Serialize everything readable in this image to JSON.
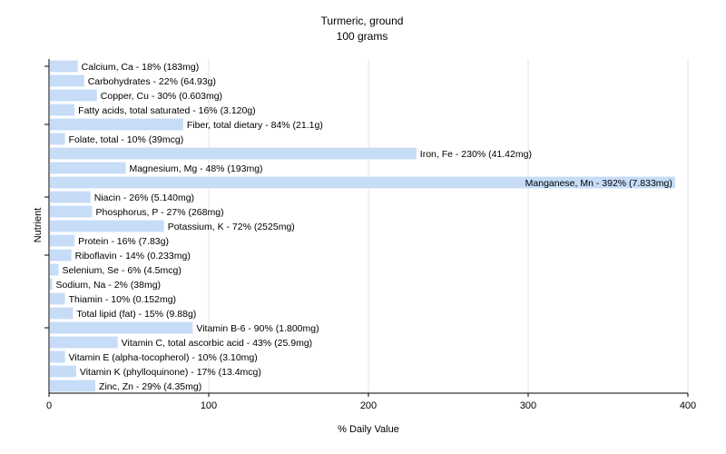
{
  "chart_data": {
    "type": "bar",
    "orientation": "horizontal",
    "title": "Turmeric, ground",
    "subtitle": "100 grams",
    "xlabel": "% Daily Value",
    "ylabel": "Nutrient",
    "xlim": [
      0,
      400
    ],
    "xticks": [
      "0",
      "100",
      "200",
      "300",
      "400"
    ],
    "grid": "vertical",
    "bar_color": "#c6dcf7",
    "categories": [
      "Calcium, Ca",
      "Carbohydrates",
      "Copper, Cu",
      "Fatty acids, total saturated",
      "Fiber, total dietary",
      "Folate, total",
      "Iron, Fe",
      "Magnesium, Mg",
      "Manganese, Mn",
      "Niacin",
      "Phosphorus, P",
      "Potassium, K",
      "Protein",
      "Riboflavin",
      "Selenium, Se",
      "Sodium, Na",
      "Thiamin",
      "Total lipid (fat)",
      "Vitamin B-6",
      "Vitamin C, total ascorbic acid",
      "Vitamin E (alpha-tocopherol)",
      "Vitamin K (phylloquinone)",
      "Zinc, Zn"
    ],
    "values": [
      18,
      22,
      30,
      16,
      84,
      10,
      230,
      48,
      392,
      26,
      27,
      72,
      16,
      14,
      6,
      2,
      10,
      15,
      90,
      43,
      10,
      17,
      29
    ],
    "labels": [
      "Calcium, Ca - 18% (183mg)",
      "Carbohydrates - 22% (64.93g)",
      "Copper, Cu - 30% (0.603mg)",
      "Fatty acids, total saturated - 16% (3.120g)",
      "Fiber, total dietary - 84% (21.1g)",
      "Folate, total - 10% (39mcg)",
      "Iron, Fe - 230% (41.42mg)",
      "Magnesium, Mg - 48% (193mg)",
      "Manganese, Mn - 392% (7.833mg)",
      "Niacin - 26% (5.140mg)",
      "Phosphorus, P - 27% (268mg)",
      "Potassium, K - 72% (2525mg)",
      "Protein - 16% (7.83g)",
      "Riboflavin - 14% (0.233mg)",
      "Selenium, Se - 6% (4.5mcg)",
      "Sodium, Na - 2% (38mg)",
      "Thiamin - 10% (0.152mg)",
      "Total lipid (fat) - 15% (9.88g)",
      "Vitamin B-6 - 90% (1.800mg)",
      "Vitamin C, total ascorbic acid - 43% (25.9mg)",
      "Vitamin E (alpha-tocopherol) - 10% (3.10mg)",
      "Vitamin K (phylloquinone) - 17% (13.4mcg)",
      "Zinc, Zn - 29% (4.35mg)"
    ]
  }
}
